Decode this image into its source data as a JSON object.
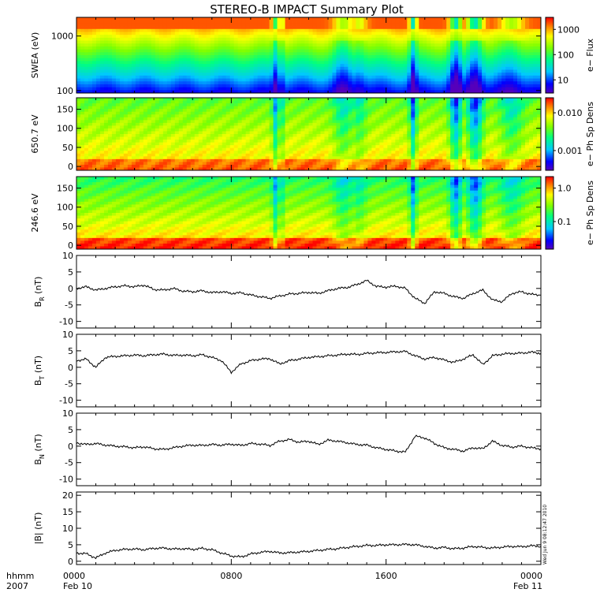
{
  "chart_data": {
    "title": "STEREO-B IMPACT Summary Plot",
    "timestamp": "Wed Jun  9 08:12:47 2010",
    "x_axis": {
      "row1": [
        "0000",
        "0800",
        "1600",
        "0000"
      ],
      "row2": [
        "Feb 10",
        "",
        "",
        "Feb 11"
      ],
      "hours": [
        0,
        8,
        16,
        24
      ],
      "range_hours": [
        0,
        24
      ],
      "corner_label": "hhmm",
      "year": "2007"
    },
    "panels": [
      {
        "id": "swea",
        "type": "heatmap",
        "ylabel": "SWEA (eV)",
        "yscale": "log",
        "yrange": [
          90,
          2200
        ],
        "yticks": [
          {
            "value": 100,
            "label": "100"
          },
          {
            "value": 1000,
            "label": "1000"
          }
        ],
        "colorbar": {
          "label": "e− Flux",
          "scale": "log",
          "range": [
            3,
            3000
          ],
          "ticks": [
            {
              "value": 10,
              "label": "10"
            },
            {
              "value": 100,
              "label": "100"
            },
            {
              "value": 1000,
              "label": "1000"
            }
          ]
        }
      },
      {
        "id": "pad650",
        "type": "heatmap",
        "ylabel": "650.7 eV",
        "yscale": "linear",
        "yrange": [
          -10,
          180
        ],
        "yticks": [
          {
            "value": 0,
            "label": "0"
          },
          {
            "value": 50,
            "label": "50"
          },
          {
            "value": 100,
            "label": "100"
          },
          {
            "value": 150,
            "label": "150"
          }
        ],
        "colorbar": {
          "label": "e− Ph Sp Dens",
          "scale": "log",
          "range": [
            0.0003,
            0.025
          ],
          "ticks": [
            {
              "value": 0.001,
              "label": "0.001"
            },
            {
              "value": 0.01,
              "label": "0.010"
            }
          ]
        }
      },
      {
        "id": "pad246",
        "type": "heatmap",
        "ylabel": "246.6 eV",
        "yscale": "linear",
        "yrange": [
          -10,
          180
        ],
        "yticks": [
          {
            "value": 0,
            "label": "0"
          },
          {
            "value": 50,
            "label": "50"
          },
          {
            "value": 100,
            "label": "100"
          },
          {
            "value": 150,
            "label": "150"
          }
        ],
        "colorbar": {
          "label": "e− Ph Sp Dens",
          "scale": "log",
          "range": [
            0.015,
            2.2
          ],
          "ticks": [
            {
              "value": 0.1,
              "label": "0.1"
            },
            {
              "value": 1.0,
              "label": "1.0"
            }
          ]
        }
      },
      {
        "id": "br",
        "type": "line",
        "ylabel_main": "B",
        "ylabel_sub": "R",
        "ylabel_unit": " (nT)",
        "yrange": [
          -12,
          10
        ],
        "yticks": [
          10,
          5,
          0,
          -5,
          -10
        ],
        "x": [
          0,
          0.5,
          1,
          1.5,
          2,
          2.5,
          3,
          3.5,
          4,
          4.5,
          5,
          5.5,
          6,
          6.5,
          7,
          7.5,
          8,
          8.5,
          9,
          9.5,
          10,
          10.5,
          11,
          11.5,
          12,
          12.5,
          13,
          13.5,
          14,
          14.5,
          15,
          15.5,
          16,
          16.5,
          17,
          17.5,
          18,
          18.5,
          19,
          19.5,
          20,
          20.5,
          21,
          21.5,
          22,
          22.5,
          23,
          23.5,
          24
        ],
        "y": [
          0,
          0.5,
          -0.5,
          0,
          0.5,
          0.8,
          0.5,
          1,
          -0.3,
          -0.5,
          0,
          -0.8,
          -1,
          -0.7,
          -1.3,
          -1,
          -1.5,
          -1.3,
          -2,
          -2.5,
          -3,
          -2.3,
          -1.7,
          -1.5,
          -1.2,
          -1.5,
          -0.7,
          0,
          0.3,
          1.2,
          2.4,
          0.6,
          0.4,
          0.7,
          0,
          -3,
          -4.5,
          -1,
          -1.5,
          -2.5,
          -3,
          -1.5,
          -0.5,
          -3.5,
          -4,
          -1.5,
          -1,
          -1.8,
          -2
        ]
      },
      {
        "id": "bt",
        "type": "line",
        "ylabel_main": "B",
        "ylabel_sub": "T",
        "ylabel_unit": " (nT)",
        "yrange": [
          -12,
          10
        ],
        "yticks": [
          10,
          5,
          0,
          -5,
          -10
        ],
        "x": [
          0,
          0.5,
          1,
          1.5,
          2,
          2.5,
          3,
          3.5,
          4,
          4.5,
          5,
          5.5,
          6,
          6.5,
          7,
          7.5,
          8,
          8.5,
          9,
          9.5,
          10,
          10.5,
          11,
          11.5,
          12,
          12.5,
          13,
          13.5,
          14,
          14.5,
          15,
          15.5,
          16,
          16.5,
          17,
          17.5,
          18,
          18.5,
          19,
          19.5,
          20,
          20.5,
          21,
          21.5,
          22,
          22.5,
          23,
          23.5,
          24
        ],
        "y": [
          2,
          2.5,
          0,
          3,
          3.3,
          3.5,
          3.7,
          3.5,
          3.8,
          4,
          3.6,
          3.7,
          3.5,
          3.8,
          3,
          2,
          -1.5,
          1,
          2,
          2.5,
          2.6,
          1,
          2,
          2.5,
          3,
          3.2,
          3.5,
          3.7,
          4,
          3.9,
          4.2,
          4.4,
          4.5,
          4.7,
          4.8,
          3.5,
          2.5,
          3,
          2.2,
          1.5,
          2.5,
          3.8,
          0.8,
          3.5,
          4,
          4.2,
          4.3,
          4.6,
          4.2
        ]
      },
      {
        "id": "bn",
        "type": "line",
        "ylabel_main": "B",
        "ylabel_sub": "N",
        "ylabel_unit": " (nT)",
        "yrange": [
          -12,
          10
        ],
        "yticks": [
          10,
          5,
          0,
          -5,
          -10
        ],
        "x": [
          0,
          0.5,
          1,
          1.5,
          2,
          2.5,
          3,
          3.5,
          4,
          4.5,
          5,
          5.5,
          6,
          6.5,
          7,
          7.5,
          8,
          8.5,
          9,
          9.5,
          10,
          10.5,
          11,
          11.5,
          12,
          12.5,
          13,
          13.5,
          14,
          14.5,
          15,
          15.5,
          16,
          16.5,
          17,
          17.5,
          18,
          18.5,
          19,
          19.5,
          20,
          20.5,
          21,
          21.5,
          22,
          22.5,
          23,
          23.5,
          24
        ],
        "y": [
          1,
          0.5,
          0.8,
          0.3,
          0,
          -0.2,
          -0.5,
          -0.2,
          -0.8,
          -1,
          -0.5,
          0,
          0.3,
          0.2,
          0.5,
          0.3,
          0.6,
          0.2,
          0.8,
          0.6,
          0.2,
          1.5,
          2,
          1.2,
          1.5,
          0.5,
          1.8,
          1.5,
          1,
          0.5,
          0.3,
          -0.5,
          -1,
          -1.5,
          -1.8,
          3,
          2.5,
          0.8,
          -0.5,
          -1,
          -1.5,
          -0.5,
          -0.8,
          1.5,
          0.2,
          -0.3,
          0,
          -0.5,
          -0.8
        ]
      },
      {
        "id": "bmag",
        "type": "line",
        "ylabel_main": "|B|",
        "ylabel_sub": "",
        "ylabel_unit": " (nT)",
        "yrange": [
          -1,
          21
        ],
        "yticks": [
          20,
          15,
          10,
          5,
          0
        ],
        "x": [
          0,
          0.5,
          1,
          1.5,
          2,
          2.5,
          3,
          3.5,
          4,
          4.5,
          5,
          5.5,
          6,
          6.5,
          7,
          7.5,
          8,
          8.5,
          9,
          9.5,
          10,
          10.5,
          11,
          11.5,
          12,
          12.5,
          13,
          13.5,
          14,
          14.5,
          15,
          15.5,
          16,
          16.5,
          17,
          17.5,
          18,
          18.5,
          19,
          19.5,
          20,
          20.5,
          21,
          21.5,
          22,
          22.5,
          23,
          23.5,
          24
        ],
        "y": [
          2.5,
          2.3,
          1,
          2.5,
          3.3,
          3.6,
          3.7,
          3.5,
          3.9,
          4,
          3.7,
          3.8,
          3.6,
          3.9,
          3.5,
          2.5,
          1.6,
          1.3,
          2.2,
          2.7,
          3,
          2.5,
          2.6,
          2.8,
          3,
          3.3,
          3.6,
          3.8,
          4.2,
          4.5,
          4.8,
          4.8,
          5,
          5,
          5.1,
          5,
          4.5,
          4,
          4.2,
          3.8,
          4,
          4.5,
          4.2,
          4,
          4.3,
          4.5,
          4.4,
          4.7,
          4.5
        ]
      }
    ]
  }
}
